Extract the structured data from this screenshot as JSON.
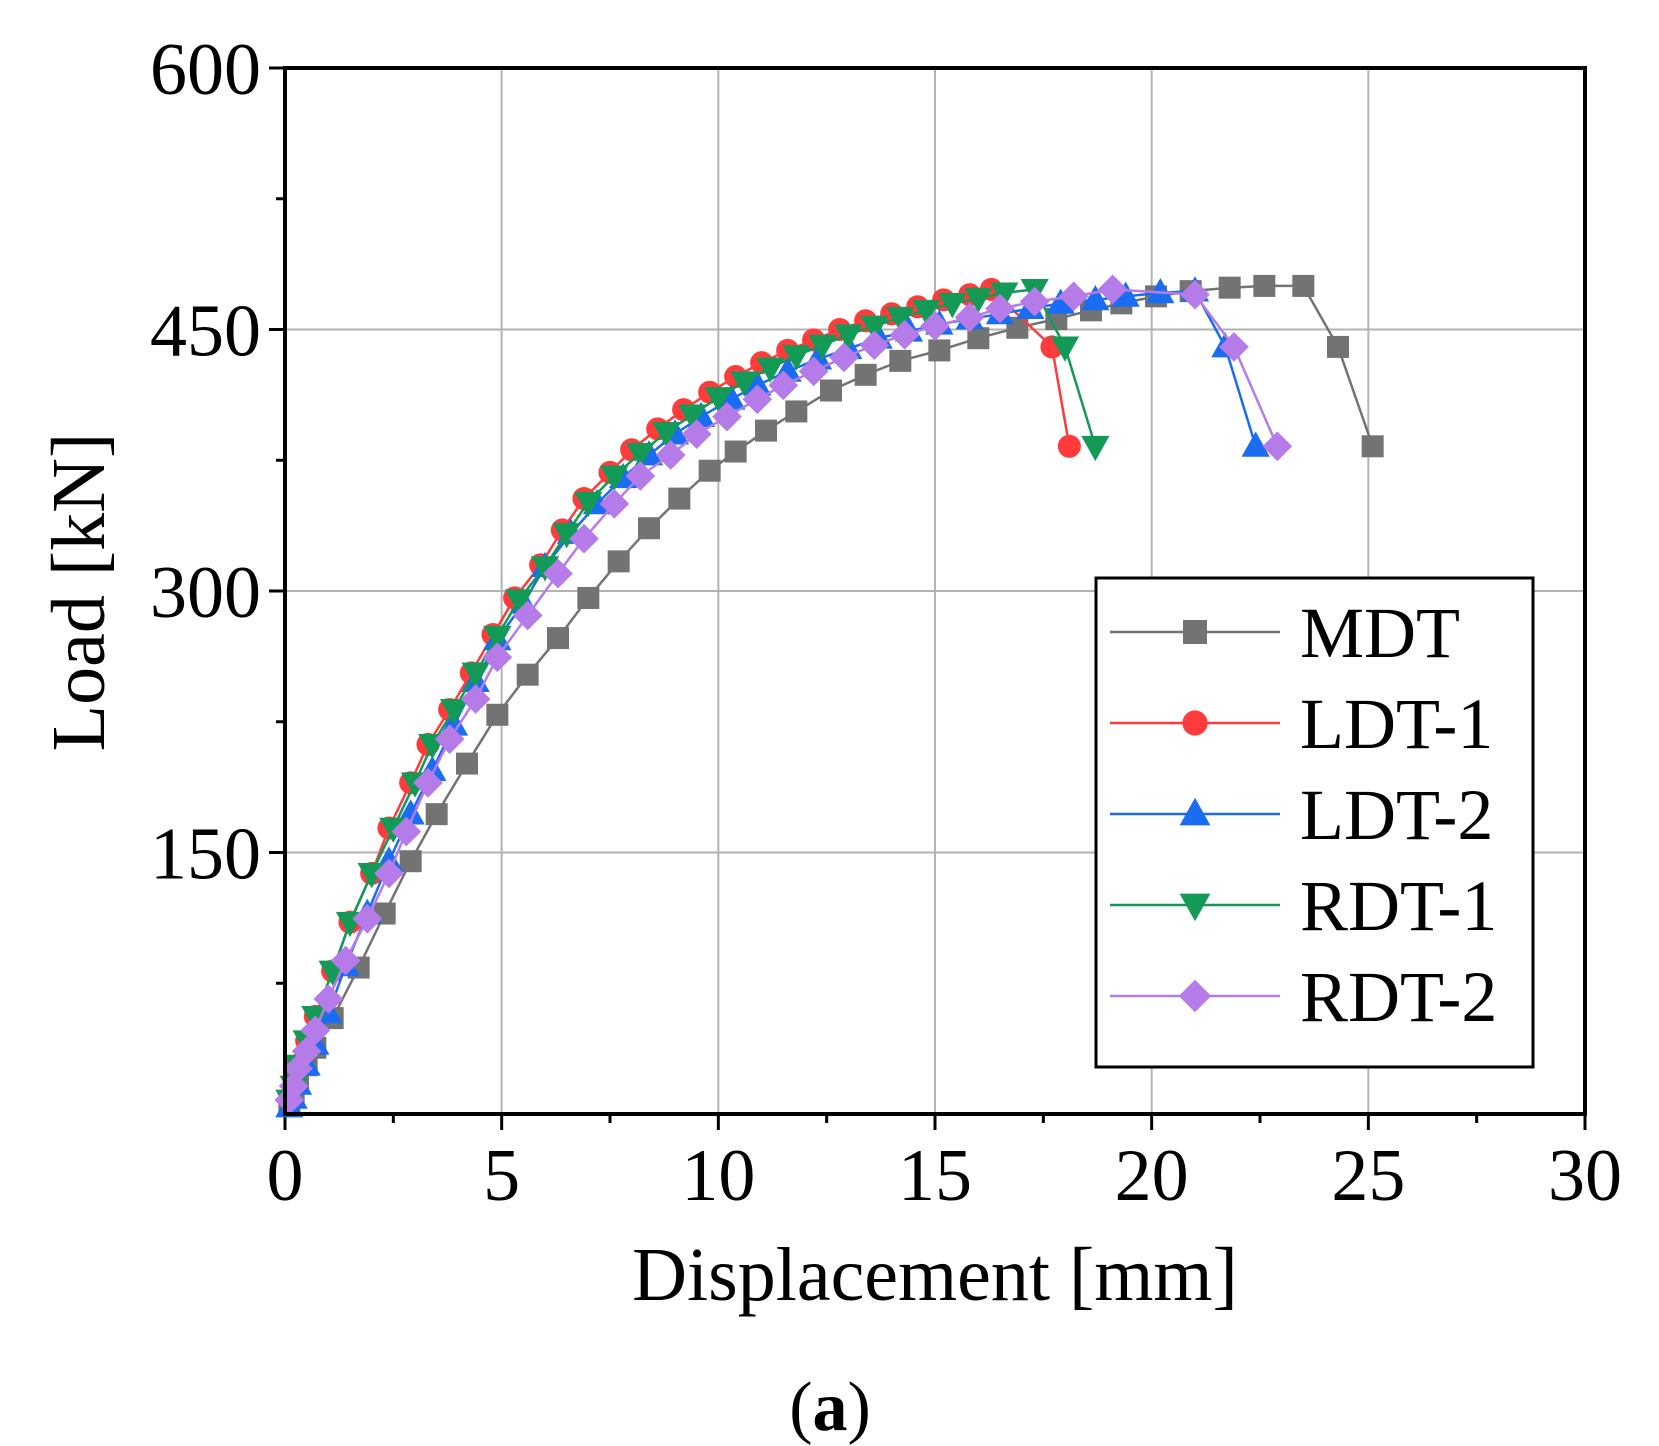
{
  "chart_data": {
    "type": "line",
    "xlabel": "Displacement [mm]",
    "ylabel": "Load [kN]",
    "xlim": [
      0,
      30
    ],
    "ylim": [
      0,
      600
    ],
    "xticks": [
      0,
      5,
      10,
      15,
      20,
      25,
      30
    ],
    "yticks": [
      150,
      300,
      450,
      600
    ],
    "grid": true,
    "legend_position": "bottom-right",
    "caption_letter": "a",
    "series": [
      {
        "name": "MDT",
        "color": "#737373",
        "marker": "square",
        "x": [
          0.1,
          0.2,
          0.3,
          0.5,
          0.7,
          1.1,
          1.7,
          2.3,
          2.9,
          3.5,
          4.2,
          4.9,
          5.6,
          6.3,
          7.0,
          7.7,
          8.4,
          9.1,
          9.8,
          10.4,
          11.1,
          11.8,
          12.6,
          13.4,
          14.2,
          15.1,
          16.0,
          16.9,
          17.8,
          18.6,
          19.3,
          20.1,
          20.9,
          21.8,
          22.6,
          23.5,
          24.3,
          25.1
        ],
        "y": [
          5,
          10,
          18,
          28,
          38,
          55,
          84,
          115,
          145,
          172,
          201,
          229,
          252,
          273,
          296,
          317,
          336,
          353,
          369,
          380,
          392,
          403,
          415,
          424,
          432,
          438,
          445,
          451,
          456,
          461,
          465,
          469,
          472,
          474,
          475,
          475,
          440,
          383
        ]
      },
      {
        "name": "LDT-1",
        "color": "#ff3b3b",
        "marker": "circle",
        "x": [
          0.1,
          0.2,
          0.3,
          0.5,
          0.7,
          1.1,
          1.5,
          2.0,
          2.4,
          2.9,
          3.3,
          3.8,
          4.3,
          4.8,
          5.3,
          5.9,
          6.4,
          6.9,
          7.5,
          8.0,
          8.6,
          9.2,
          9.8,
          10.4,
          11.0,
          11.6,
          12.2,
          12.8,
          13.4,
          14.0,
          14.6,
          15.2,
          15.8,
          16.3,
          17.7,
          18.1
        ],
        "y": [
          8,
          16,
          28,
          42,
          56,
          82,
          110,
          138,
          164,
          190,
          212,
          232,
          253,
          275,
          296,
          315,
          335,
          353,
          368,
          381,
          393,
          404,
          414,
          423,
          431,
          438,
          444,
          450,
          455,
          459,
          463,
          467,
          470,
          473,
          440,
          383
        ]
      },
      {
        "name": "LDT-2",
        "color": "#1a6cf0",
        "marker": "triangle-up",
        "x": [
          0.1,
          0.2,
          0.3,
          0.5,
          0.7,
          1.0,
          1.4,
          1.9,
          2.4,
          2.9,
          3.4,
          3.9,
          4.4,
          4.9,
          5.5,
          6.0,
          6.6,
          7.2,
          7.8,
          8.4,
          9.0,
          9.6,
          10.3,
          10.9,
          11.6,
          12.3,
          13.0,
          13.7,
          14.4,
          15.1,
          15.8,
          16.5,
          17.2,
          17.9,
          18.7,
          19.4,
          20.2,
          21.0,
          21.7,
          22.4
        ],
        "y": [
          4,
          9,
          17,
          28,
          40,
          58,
          85,
          115,
          145,
          172,
          197,
          223,
          248,
          272,
          293,
          314,
          333,
          350,
          365,
          378,
          390,
          400,
          410,
          418,
          426,
          433,
          439,
          445,
          449,
          453,
          456,
          459,
          462,
          465,
          467,
          469,
          471,
          472,
          440,
          383
        ]
      },
      {
        "name": "RDT-1",
        "color": "#139a57",
        "marker": "triangle-down",
        "x": [
          0.1,
          0.2,
          0.3,
          0.5,
          0.7,
          1.1,
          1.5,
          2.0,
          2.5,
          3.0,
          3.4,
          3.9,
          4.4,
          4.9,
          5.4,
          6.0,
          6.5,
          7.0,
          7.6,
          8.2,
          8.8,
          9.4,
          10.0,
          10.6,
          11.2,
          11.8,
          12.4,
          13.0,
          13.6,
          14.2,
          14.8,
          15.4,
          16.0,
          16.6,
          17.3,
          18.0,
          18.7
        ],
        "y": [
          8,
          16,
          28,
          42,
          56,
          82,
          110,
          138,
          164,
          190,
          212,
          232,
          253,
          274,
          295,
          314,
          333,
          351,
          366,
          379,
          391,
          401,
          411,
          420,
          428,
          435,
          441,
          447,
          452,
          457,
          461,
          465,
          468,
          471,
          473,
          440,
          383
        ]
      },
      {
        "name": "RDT-2",
        "color": "#b57be8",
        "marker": "diamond",
        "x": [
          0.1,
          0.2,
          0.3,
          0.5,
          0.7,
          1.0,
          1.4,
          1.9,
          2.4,
          2.8,
          3.3,
          3.8,
          4.4,
          4.9,
          5.6,
          6.3,
          6.9,
          7.6,
          8.2,
          8.9,
          9.5,
          10.2,
          10.9,
          11.5,
          12.2,
          12.9,
          13.6,
          14.3,
          15.0,
          15.8,
          16.5,
          17.3,
          18.2,
          19.1,
          21.0,
          21.9,
          22.9
        ],
        "y": [
          8,
          16,
          26,
          36,
          48,
          66,
          88,
          112,
          138,
          162,
          190,
          215,
          238,
          262,
          286,
          310,
          330,
          350,
          366,
          378,
          390,
          400,
          410,
          418,
          426,
          434,
          441,
          447,
          452,
          457,
          462,
          466,
          469,
          473,
          470,
          440,
          383
        ]
      }
    ]
  }
}
